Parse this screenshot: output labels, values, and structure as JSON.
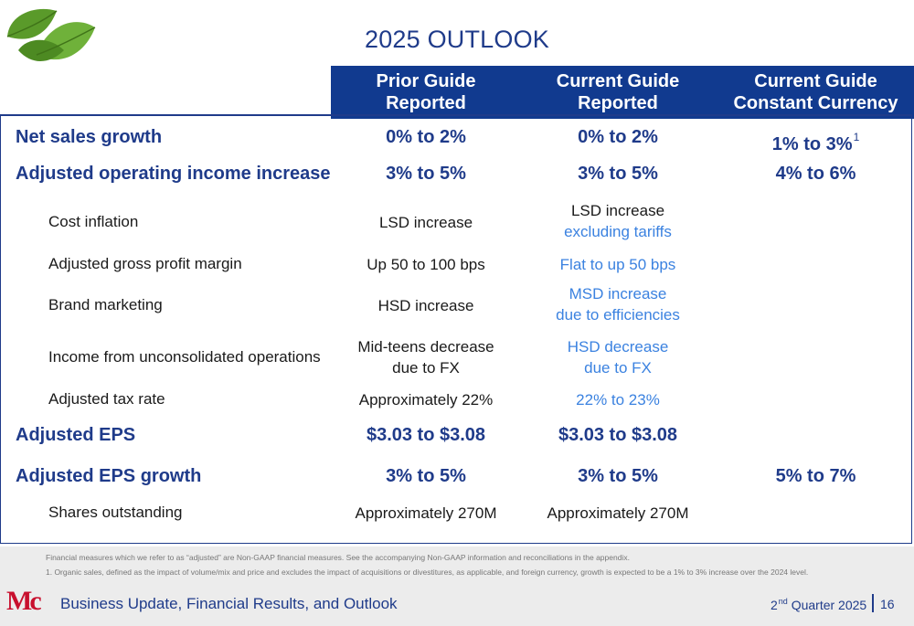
{
  "title": "2025 OUTLOOK",
  "columns": [
    {
      "line1": "Prior Guide",
      "line2": "Reported"
    },
    {
      "line1": "Current Guide",
      "line2": "Reported"
    },
    {
      "line1": "Current Guide",
      "line2": "Constant Currency"
    }
  ],
  "rows": {
    "net_sales": {
      "label": "Net sales growth",
      "prior": "0% to 2%",
      "current": "0% to 2%",
      "constant": "1% to 3%",
      "constant_sup": "1"
    },
    "adj_op_income": {
      "label": "Adjusted operating income increase",
      "prior": "3% to 5%",
      "current": "3% to 5%",
      "constant": "4% to 6%"
    },
    "cost_inflation": {
      "label": "Cost inflation",
      "prior": "LSD increase",
      "current_l1": "LSD increase",
      "current_l2": "excluding tariffs"
    },
    "gross_margin": {
      "label": "Adjusted gross profit margin",
      "prior": "Up 50 to 100 bps",
      "current": "Flat to up 50 bps"
    },
    "brand_marketing": {
      "label": "Brand marketing",
      "prior": "HSD increase",
      "current_l1": "MSD increase",
      "current_l2": "due to efficiencies"
    },
    "unconsolidated": {
      "label": "Income from unconsolidated operations",
      "prior_l1": "Mid-teens decrease",
      "prior_l2": "due to FX",
      "current_l1": "HSD decrease",
      "current_l2": "due to FX"
    },
    "tax_rate": {
      "label": "Adjusted tax rate",
      "prior": "Approximately 22%",
      "current": "22% to 23%"
    },
    "adj_eps": {
      "label": "Adjusted EPS",
      "prior": "$3.03 to $3.08",
      "current": "$3.03 to $3.08"
    },
    "adj_eps_growth": {
      "label": "Adjusted EPS growth",
      "prior": "3% to 5%",
      "current": "3% to 5%",
      "constant": "5% to 7%"
    },
    "shares": {
      "label": "Shares outstanding",
      "prior": "Approximately 270M",
      "current": "Approximately 270M"
    }
  },
  "footnotes": [
    "Financial measures which we refer to as “adjusted” are Non-GAAP financial measures. See the accompanying Non-GAAP information and reconciliations in the appendix.",
    "1. Organic sales, defined as the impact of volume/mix and price and excludes the impact of acquisitions or divestitures, as applicable, and foreign currency, growth is expected to be a 1% to 3% increase over the 2024 level."
  ],
  "footer": {
    "section": "Business Update, Financial Results, and Outlook",
    "quarter_num": "2",
    "quarter_sup": "nd",
    "quarter_rest": " Quarter 2025",
    "page": "16",
    "logo_text": "Mc"
  },
  "colors": {
    "navy": "#113a8f",
    "accent_blue": "#3b82e0",
    "logo_red": "#c8102e"
  }
}
